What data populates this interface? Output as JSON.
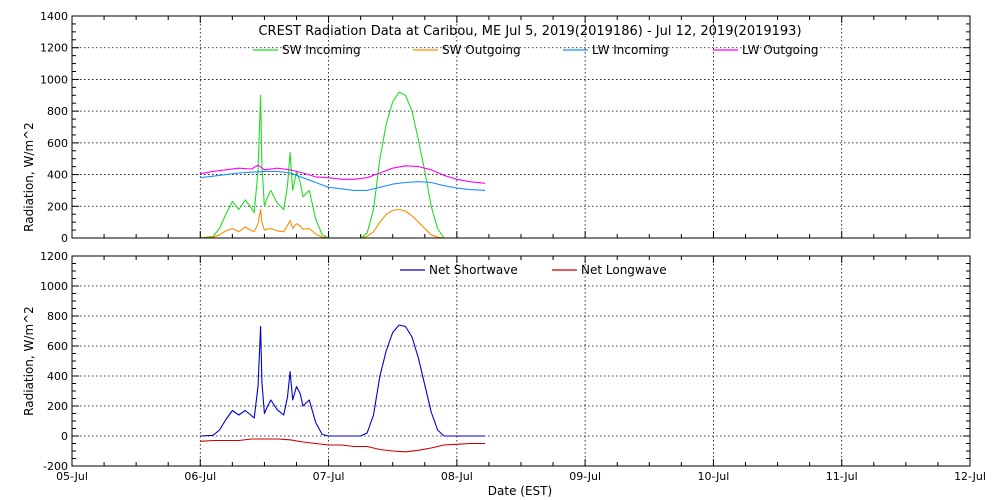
{
  "chart_data": [
    {
      "type": "line",
      "title": "CREST Radiation Data at Caribou, ME   Jul  5, 2019(2019186) - Jul 12, 2019(2019193)",
      "xlabel": "",
      "ylabel": "Radiation, W/m^2",
      "xlim": [
        0,
        7
      ],
      "ylim": [
        0,
        1400
      ],
      "yticks": [
        0,
        200,
        400,
        600,
        800,
        1000,
        1200,
        1400
      ],
      "grid": true,
      "legend": "top, horizontal",
      "series": [
        {
          "name": "SW Incoming",
          "color": "#22dd22",
          "x": [
            1.0,
            1.1,
            1.15,
            1.2,
            1.25,
            1.3,
            1.35,
            1.38,
            1.42,
            1.45,
            1.47,
            1.48,
            1.5,
            1.52,
            1.55,
            1.6,
            1.65,
            1.68,
            1.7,
            1.72,
            1.75,
            1.78,
            1.8,
            1.85,
            1.9,
            1.95,
            2.0,
            2.1,
            2.2,
            2.25,
            2.3,
            2.35,
            2.4,
            2.45,
            2.5,
            2.55,
            2.6,
            2.65,
            2.7,
            2.75,
            2.8,
            2.85,
            2.9,
            3.0,
            3.1,
            3.22
          ],
          "y": [
            0,
            10,
            60,
            150,
            230,
            180,
            240,
            210,
            160,
            420,
            900,
            460,
            200,
            250,
            300,
            220,
            180,
            330,
            540,
            300,
            420,
            350,
            260,
            300,
            120,
            20,
            0,
            0,
            0,
            0,
            30,
            180,
            500,
            720,
            860,
            920,
            900,
            800,
            620,
            420,
            200,
            60,
            0,
            0,
            0,
            0
          ]
        },
        {
          "name": "SW Outgoing",
          "color": "#ff8c00",
          "x": [
            1.0,
            1.1,
            1.15,
            1.2,
            1.25,
            1.3,
            1.35,
            1.38,
            1.42,
            1.45,
            1.47,
            1.48,
            1.5,
            1.52,
            1.55,
            1.6,
            1.65,
            1.68,
            1.7,
            1.72,
            1.75,
            1.78,
            1.8,
            1.85,
            1.9,
            1.95,
            2.0,
            2.1,
            2.2,
            2.25,
            2.3,
            2.35,
            2.4,
            2.45,
            2.5,
            2.55,
            2.6,
            2.65,
            2.7,
            2.75,
            2.8,
            2.85,
            2.9,
            3.0,
            3.1,
            3.22
          ],
          "y": [
            0,
            5,
            20,
            45,
            60,
            40,
            70,
            55,
            40,
            90,
            180,
            100,
            50,
            55,
            60,
            45,
            40,
            80,
            110,
            60,
            90,
            75,
            55,
            60,
            25,
            5,
            0,
            0,
            0,
            0,
            10,
            40,
            100,
            150,
            175,
            180,
            170,
            140,
            100,
            60,
            20,
            5,
            0,
            0,
            0,
            0
          ]
        },
        {
          "name": "LW Incoming",
          "color": "#1e90ff",
          "x": [
            1.0,
            1.1,
            1.2,
            1.3,
            1.4,
            1.5,
            1.6,
            1.7,
            1.8,
            1.9,
            2.0,
            2.1,
            2.2,
            2.3,
            2.4,
            2.5,
            2.6,
            2.7,
            2.8,
            2.9,
            3.0,
            3.1,
            3.22
          ],
          "y": [
            380,
            390,
            400,
            410,
            415,
            420,
            420,
            410,
            380,
            350,
            320,
            310,
            300,
            300,
            320,
            340,
            350,
            355,
            350,
            330,
            315,
            305,
            300
          ]
        },
        {
          "name": "LW Outgoing",
          "color": "#ff00ff",
          "x": [
            1.0,
            1.1,
            1.2,
            1.3,
            1.4,
            1.45,
            1.5,
            1.6,
            1.7,
            1.8,
            1.9,
            2.0,
            2.1,
            2.2,
            2.3,
            2.4,
            2.5,
            2.6,
            2.7,
            2.8,
            2.9,
            3.0,
            3.1,
            3.22
          ],
          "y": [
            405,
            420,
            430,
            440,
            435,
            460,
            430,
            440,
            430,
            410,
            385,
            380,
            370,
            370,
            380,
            410,
            440,
            455,
            450,
            430,
            395,
            370,
            355,
            345
          ]
        }
      ]
    },
    {
      "type": "line",
      "title": "",
      "xlabel": "Date (EST)",
      "ylabel": "Radiation, W/m^2",
      "xlim": [
        0,
        7
      ],
      "ylim": [
        -200,
        1200
      ],
      "yticks": [
        -200,
        0,
        200,
        400,
        600,
        800,
        1000,
        1200
      ],
      "categories": [
        "05-Jul",
        "06-Jul",
        "07-Jul",
        "08-Jul",
        "09-Jul",
        "10-Jul",
        "11-Jul",
        "12-Jul"
      ],
      "grid": true,
      "legend": "top, horizontal",
      "series": [
        {
          "name": "Net Shortwave",
          "color": "#0000cc",
          "x": [
            1.0,
            1.1,
            1.15,
            1.2,
            1.25,
            1.3,
            1.35,
            1.38,
            1.42,
            1.45,
            1.47,
            1.48,
            1.5,
            1.52,
            1.55,
            1.6,
            1.65,
            1.68,
            1.7,
            1.72,
            1.75,
            1.78,
            1.8,
            1.85,
            1.9,
            1.95,
            2.0,
            2.1,
            2.2,
            2.25,
            2.3,
            2.35,
            2.4,
            2.45,
            2.5,
            2.55,
            2.6,
            2.65,
            2.7,
            2.75,
            2.8,
            2.85,
            2.9,
            3.0,
            3.1,
            3.22
          ],
          "y": [
            0,
            5,
            40,
            110,
            170,
            140,
            170,
            150,
            120,
            330,
            730,
            360,
            150,
            190,
            240,
            175,
            140,
            260,
            430,
            240,
            330,
            280,
            200,
            240,
            90,
            10,
            0,
            0,
            0,
            0,
            20,
            140,
            400,
            570,
            690,
            740,
            730,
            660,
            520,
            340,
            160,
            40,
            0,
            0,
            0,
            0
          ]
        },
        {
          "name": "Net Longwave",
          "color": "#cc0000",
          "x": [
            1.0,
            1.1,
            1.2,
            1.3,
            1.4,
            1.5,
            1.6,
            1.7,
            1.8,
            1.9,
            2.0,
            2.1,
            2.2,
            2.3,
            2.4,
            2.5,
            2.6,
            2.7,
            2.8,
            2.9,
            3.0,
            3.1,
            3.22
          ],
          "y": [
            -35,
            -30,
            -30,
            -30,
            -20,
            -20,
            -20,
            -25,
            -40,
            -50,
            -60,
            -60,
            -70,
            -70,
            -90,
            -100,
            -105,
            -95,
            -80,
            -60,
            -55,
            -50,
            -50
          ]
        }
      ]
    }
  ]
}
